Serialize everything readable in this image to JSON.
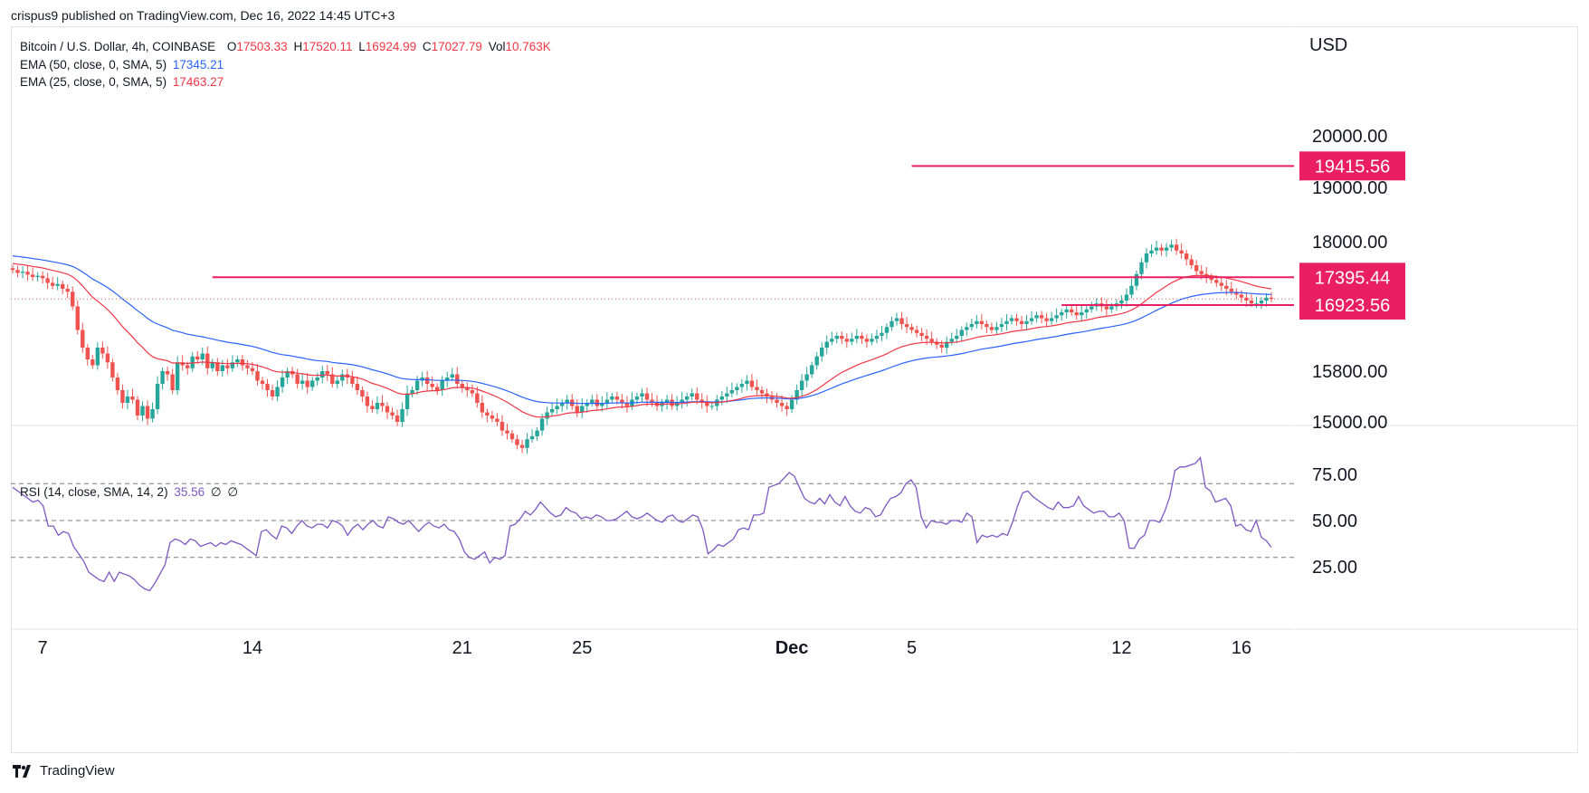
{
  "header": {
    "attribution": "crispus9 published on TradingView.com, Dec 16, 2022 14:45 UTC+3"
  },
  "legend": {
    "symbol": "Bitcoin / U.S. Dollar, 4h, COINBASE",
    "open_label": "O",
    "open": "17503.33",
    "high_label": "H",
    "high": "17520.11",
    "low_label": "L",
    "low": "16924.99",
    "close_label": "C",
    "close": "17027.79",
    "vol_label": "Vol",
    "vol": "10.763K",
    "ema50_label": "EMA (50, close, 0, SMA, 5)",
    "ema50_value": "17345.21",
    "ema25_label": "EMA (25, close, 0, SMA, 5)",
    "ema25_value": "17463.27",
    "rsi_label": "RSI (14, close, SMA, 14, 2)",
    "rsi_value": "35.56",
    "rsi_extra1": "∅",
    "rsi_extra2": "∅"
  },
  "footer": {
    "brand": "TradingView"
  },
  "colors": {
    "up": "#26a69a",
    "down": "#ef5350",
    "ema50": "#2962ff",
    "ema25": "#f23645",
    "rsi": "#7e57c2",
    "level": "#e91e63",
    "grid": "#787b86",
    "text": "#131722"
  },
  "chart_data": [
    {
      "type": "candlestick",
      "title": "Bitcoin / U.S. Dollar, 4h, COINBASE",
      "currency": "USD",
      "y_ticks": [
        "20000.00",
        "19000.00",
        "18000.00",
        "15800.00",
        "15000.00"
      ],
      "y_tick_values": [
        20000,
        19000,
        18000,
        15800,
        15000
      ],
      "x_ticks": [
        "7",
        "14",
        "21",
        "25",
        "Dec",
        "5",
        "12",
        "16"
      ],
      "x_tick_index": [
        6,
        48,
        90,
        114,
        156,
        180,
        222,
        246
      ],
      "levels": [
        {
          "label": "19415.56",
          "value": 19415.56,
          "from_index": 180
        },
        {
          "label": "17395.44",
          "value": 17395.44,
          "from_index": 40
        },
        {
          "label": "16923.56",
          "value": 16923.56,
          "from_index": 210
        }
      ],
      "approx_closes": [
        17520,
        17470,
        17490,
        17440,
        17400,
        17420,
        17380,
        17300,
        17250,
        17280,
        17200,
        17150,
        16900,
        16500,
        16200,
        16000,
        15900,
        16200,
        16100,
        15950,
        15700,
        15500,
        15300,
        15400,
        15350,
        15100,
        15250,
        15050,
        15200,
        15600,
        15800,
        15750,
        15500,
        15950,
        15900,
        15850,
        16050,
        16000,
        16100,
        15850,
        15950,
        15800,
        15900,
        15850,
        15950,
        16000,
        15900,
        15850,
        15800,
        15650,
        15600,
        15500,
        15400,
        15550,
        15700,
        15800,
        15750,
        15600,
        15650,
        15550,
        15650,
        15700,
        15800,
        15750,
        15600,
        15650,
        15750,
        15700,
        15600,
        15500,
        15400,
        15250,
        15200,
        15300,
        15250,
        15150,
        15100,
        15000,
        15200,
        15450,
        15500,
        15650,
        15700,
        15600,
        15550,
        15500,
        15650,
        15700,
        15750,
        15600,
        15550,
        15500,
        15450,
        15300,
        15150,
        15100,
        15050,
        15000,
        14850,
        14800,
        14700,
        14600,
        14550,
        14700,
        14750,
        14850,
        15050,
        15150,
        15200,
        15250,
        15300,
        15350,
        15250,
        15150,
        15250,
        15300,
        15350,
        15250,
        15300,
        15350,
        15400,
        15350,
        15300,
        15250,
        15350,
        15400,
        15450,
        15350,
        15300,
        15250,
        15300,
        15350,
        15250,
        15300,
        15350,
        15400,
        15450,
        15350,
        15300,
        15250,
        15250,
        15350,
        15400,
        15450,
        15500,
        15550,
        15600,
        15650,
        15550,
        15500,
        15450,
        15400,
        15350,
        15300,
        15250,
        15200,
        15350,
        15500,
        15650,
        15750,
        15900,
        16050,
        16200,
        16300,
        16350,
        16400,
        16350,
        16300,
        16350,
        16400,
        16350,
        16300,
        16350,
        16400,
        16450,
        16550,
        16650,
        16700,
        16600,
        16550,
        16500,
        16450,
        16400,
        16350,
        16300,
        16250,
        16200,
        16300,
        16350,
        16400,
        16500,
        16550,
        16600,
        16650,
        16600,
        16550,
        16500,
        16550,
        16600,
        16650,
        16700,
        16650,
        16600,
        16650,
        16700,
        16750,
        16700,
        16650,
        16700,
        16750,
        16800,
        16850,
        16800,
        16750,
        16800,
        16850,
        16900,
        16950,
        16900,
        16850,
        16900,
        16950,
        17000,
        17100,
        17250,
        17450,
        17650,
        17800,
        17850,
        17900,
        17850,
        17900,
        17950,
        17850,
        17800,
        17700,
        17600,
        17500,
        17450,
        17400,
        17350,
        17300,
        17250,
        17200,
        17150,
        17100,
        17050,
        17000,
        16950,
        16950,
        17000,
        17050,
        17027.79
      ],
      "ema50_last": 17345.21,
      "ema25_last": 17463.27
    },
    {
      "type": "line",
      "title": "RSI (14, close, SMA, 14, 2)",
      "y_ticks": [
        "75.00",
        "50.00",
        "25.00"
      ],
      "y_tick_values": [
        75,
        50,
        25
      ],
      "bands": [
        70,
        50,
        30
      ],
      "series": [
        {
          "name": "RSI",
          "values": [
            68,
            66,
            64,
            62,
            60,
            61,
            58,
            47,
            47,
            42,
            44,
            43,
            36,
            32,
            28,
            22,
            20,
            18,
            17,
            22,
            17,
            22,
            21,
            20,
            18,
            15,
            13,
            12,
            16,
            21,
            26,
            38,
            40,
            39,
            37,
            40,
            39,
            36,
            37,
            38,
            36,
            38,
            37,
            39,
            38,
            37,
            35,
            33,
            31,
            44,
            45,
            42,
            40,
            47,
            46,
            43,
            47,
            50,
            47,
            46,
            48,
            48,
            46,
            50,
            49,
            47,
            42,
            46,
            48,
            45,
            48,
            50,
            47,
            46,
            52,
            51,
            49,
            48,
            50,
            47,
            44,
            47,
            49,
            47,
            46,
            48,
            45,
            44,
            40,
            33,
            30,
            29,
            31,
            33,
            27,
            30,
            29,
            31,
            47,
            48,
            51,
            55,
            53,
            56,
            60,
            57,
            54,
            52,
            53,
            57,
            55,
            54,
            51,
            52,
            51,
            53,
            52,
            50,
            50,
            51,
            53,
            55,
            52,
            51,
            52,
            54,
            52,
            50,
            49,
            52,
            53,
            50,
            49,
            51,
            53,
            52,
            45,
            32,
            34,
            37,
            36,
            38,
            40,
            45,
            46,
            45,
            53,
            53,
            54,
            68,
            69,
            70,
            73,
            76,
            74,
            68,
            62,
            60,
            59,
            62,
            59,
            64,
            60,
            58,
            63,
            58,
            55,
            54,
            57,
            56,
            52,
            53,
            58,
            62,
            63,
            65,
            70,
            72,
            68,
            52,
            46,
            50,
            49,
            49,
            48,
            50,
            50,
            49,
            54,
            52,
            38,
            42,
            41,
            42,
            41,
            43,
            42,
            49,
            58,
            65,
            66,
            63,
            61,
            59,
            57,
            56,
            60,
            57,
            57,
            58,
            63,
            58,
            56,
            54,
            55,
            55,
            52,
            52,
            54,
            50,
            35,
            35,
            40,
            42,
            50,
            50,
            49,
            55,
            63,
            77,
            79,
            79,
            80,
            81,
            84,
            68,
            66,
            60,
            61,
            62,
            58,
            47,
            48,
            45,
            44,
            50,
            41,
            39,
            35.56
          ]
        }
      ]
    }
  ]
}
